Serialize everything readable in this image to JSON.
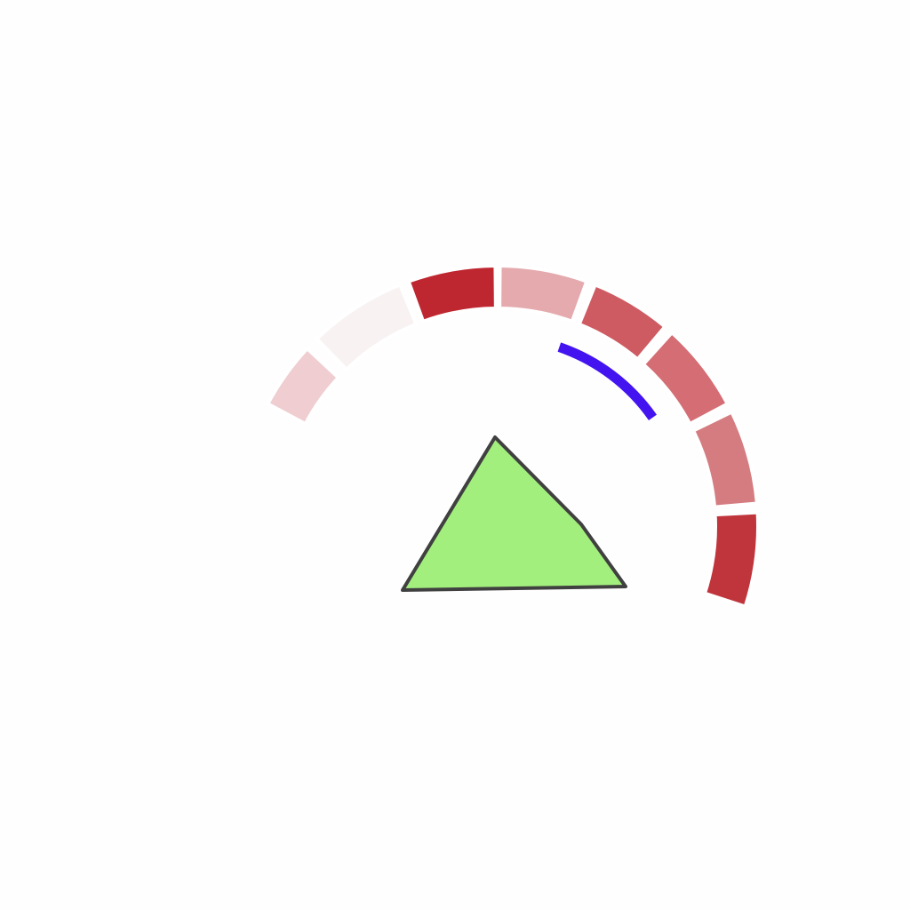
{
  "gauge": {
    "segments": [
      {
        "color": "#efcdd0"
      },
      {
        "color": "#f8f2f2"
      },
      {
        "color": "#bf2730"
      },
      {
        "color": "#e5aaae"
      },
      {
        "color": "#cf5b62"
      },
      {
        "color": "#d46e74"
      },
      {
        "color": "#d47c80"
      },
      {
        "color": "#c0343c"
      }
    ],
    "indicator": {
      "color": "#4414f0"
    },
    "center_shape": {
      "fill": "#a3ef7e",
      "stroke": "#404040"
    }
  }
}
